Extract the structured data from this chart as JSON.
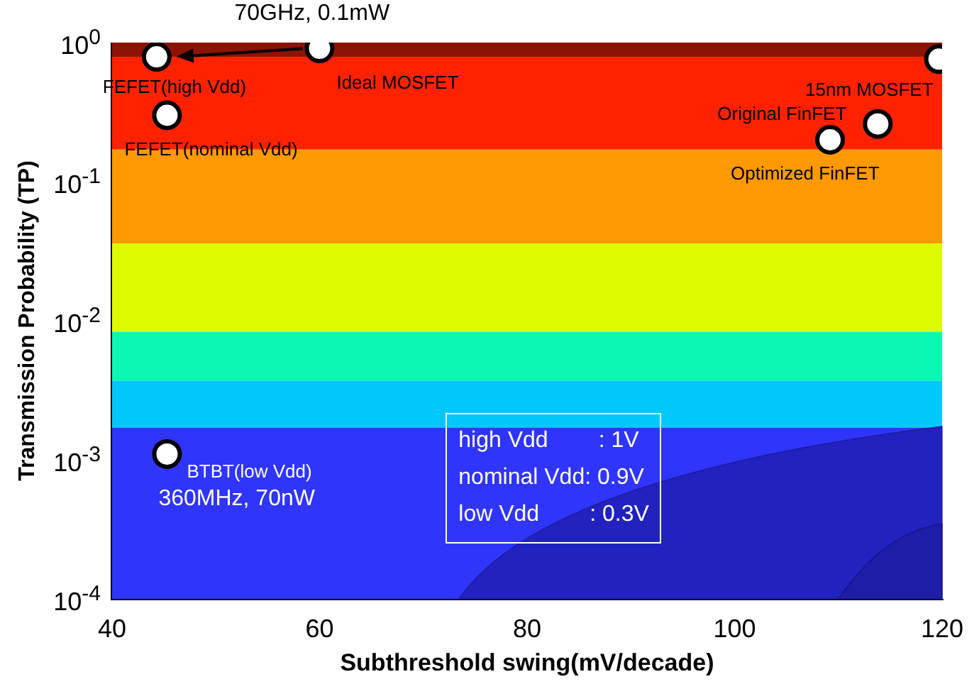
{
  "chart_data": {
    "type": "scatter",
    "xlabel": "Subthreshold swing(mV/decade)",
    "ylabel": "Transmission Probability (TP)",
    "x": [
      44.3,
      60,
      45.3,
      119.7,
      113.8,
      109.2,
      45.3
    ],
    "values": [
      0.79,
      0.91,
      0.3,
      0.76,
      0.26,
      0.2,
      0.0011
    ],
    "color": "#ffffff",
    "marker": "circle",
    "xlim": [
      40,
      120
    ],
    "xticks": [
      40,
      60,
      80,
      100,
      120
    ],
    "ylim": [
      0.0001,
      1
    ],
    "yticks": [
      {
        "value": 1,
        "label": "10$^{0}$"
      },
      {
        "value": 0.1,
        "label": "10$^{-1}$"
      },
      {
        "value": 0.01,
        "label": "10$^{-2}$"
      },
      {
        "value": 0.001,
        "label": "10$^{-3}$"
      },
      {
        "value": 0.0001,
        "label": "10$^{-4}$"
      }
    ],
    "log": "y",
    "grid": false,
    "legend": false,
    "bands": [
      {
        "axis": "y",
        "from": 0.79,
        "to": 1,
        "color": "#8b1405"
      },
      {
        "axis": "y",
        "from": 0.17,
        "to": 0.79,
        "color": "#ff2200"
      },
      {
        "axis": "y",
        "from": 0.036,
        "to": 0.17,
        "color": "#ff9900"
      },
      {
        "axis": "y",
        "from": 0.0083,
        "to": 0.036,
        "color": "#ddfa00"
      },
      {
        "axis": "y",
        "from": 0.0037,
        "to": 0.0083,
        "color": "#0af8b4"
      },
      {
        "axis": "y",
        "from": 0.0017,
        "to": 0.0037,
        "color": "#00c8fa"
      },
      {
        "axis": "y",
        "from": 0.0001,
        "to": 0.0017,
        "color": "#2f35fa"
      }
    ],
    "annotations": [
      {
        "text": "FEFET(high Vdd)",
        "x": 44.3,
        "y": 0.79
      },
      {
        "text": "Ideal MOSFET",
        "x": 60,
        "y": 0.91
      },
      {
        "text": "70GHz, 0.1mW",
        "x": 60,
        "y": 0.91
      },
      {
        "text": "FEFET(nominal Vdd)",
        "x": 45.3,
        "y": 0.3
      },
      {
        "text": "15nm MOSFET",
        "x": 119.7,
        "y": 0.76
      },
      {
        "text": "Original FinFET",
        "x": 113.8,
        "y": 0.26
      },
      {
        "text": "Optimized FinFET",
        "x": 109.2,
        "y": 0.2
      },
      {
        "text": "BTBT(low Vdd)",
        "x": 45.3,
        "y": 0.0011
      },
      {
        "text": "360MHz, 70nW",
        "x": 45.3,
        "y": 0.0011
      },
      "high Vdd        : 1V",
      "nominal Vdd: 0.9V",
      "low Vdd        : 0.3V"
    ]
  }
}
